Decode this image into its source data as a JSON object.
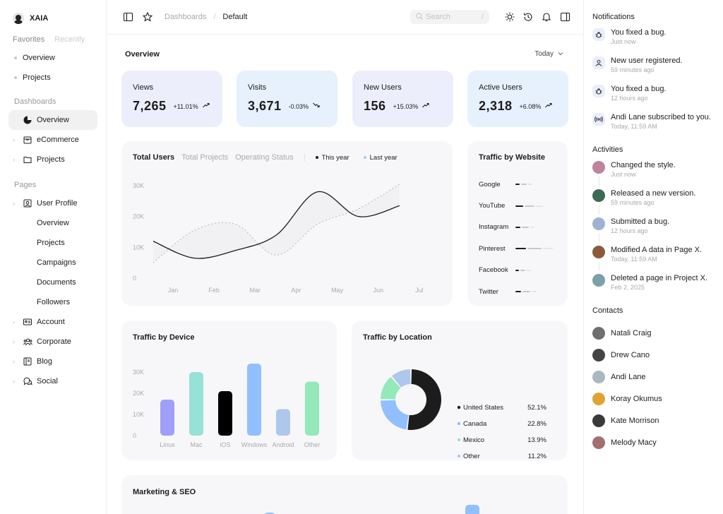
{
  "brand": {
    "name": "XAIA"
  },
  "sidebar": {
    "favorites_tab": "Favorites",
    "recently_tab": "Recently",
    "favorites": [
      {
        "label": "Overview"
      },
      {
        "label": "Projects"
      }
    ],
    "dashboards_label": "Dashboards",
    "dashboards": [
      {
        "label": "Overview",
        "icon": "pie-chart-icon"
      },
      {
        "label": "eCommerce",
        "icon": "shopping-bag-icon"
      },
      {
        "label": "Projects",
        "icon": "folder-icon"
      }
    ],
    "pages_label": "Pages",
    "user_profile": {
      "label": "User Profile",
      "icon": "user-badge-icon"
    },
    "user_profile_sub": [
      {
        "label": "Overview"
      },
      {
        "label": "Projects"
      },
      {
        "label": "Campaigns"
      },
      {
        "label": "Documents"
      },
      {
        "label": "Followers"
      }
    ],
    "pages": [
      {
        "label": "Account",
        "icon": "id-card-icon"
      },
      {
        "label": "Corporate",
        "icon": "users-icon"
      },
      {
        "label": "Blog",
        "icon": "book-icon"
      },
      {
        "label": "Social",
        "icon": "chat-icon"
      }
    ]
  },
  "topbar": {
    "breadcrumb_parent": "Dashboards",
    "breadcrumb_sep": "/",
    "breadcrumb_current": "Default",
    "search_placeholder": "Search",
    "search_shortcut": "/"
  },
  "overview": {
    "title": "Overview",
    "range": "Today",
    "stats": [
      {
        "label": "Views",
        "value": "7,265",
        "delta": "+11.01%",
        "trend": "up",
        "color": "#edeefc"
      },
      {
        "label": "Visits",
        "value": "3,671",
        "delta": "-0.03%",
        "trend": "down",
        "color": "#e6f1fd"
      },
      {
        "label": "New Users",
        "value": "156",
        "delta": "+15.03%",
        "trend": "up",
        "color": "#edeefc"
      },
      {
        "label": "Active Users",
        "value": "2,318",
        "delta": "+6.08%",
        "trend": "up",
        "color": "#e6f1fd"
      }
    ]
  },
  "total_users": {
    "tabs": [
      "Total Users",
      "Total Projects",
      "Operating Status"
    ],
    "legend_this_year": "This year",
    "legend_last_year": "Last year"
  },
  "traffic_by_website": {
    "title": "Traffic by Website",
    "sites": [
      {
        "label": "Google",
        "level": 0.35
      },
      {
        "label": "YouTube",
        "level": 0.6
      },
      {
        "label": "Instagram",
        "level": 0.4
      },
      {
        "label": "Pinterest",
        "level": 0.85
      },
      {
        "label": "Facebook",
        "level": 0.3
      },
      {
        "label": "Twitter",
        "level": 0.45
      }
    ]
  },
  "traffic_by_device": {
    "title": "Traffic by Device"
  },
  "traffic_by_location": {
    "title": "Traffic by Location"
  },
  "marketing": {
    "title": "Marketing & SEO"
  },
  "chart_data": [
    {
      "type": "line",
      "x": [
        "Jan",
        "Feb",
        "Mar",
        "Apr",
        "May",
        "Jun",
        "Jul"
      ],
      "yticks": [
        "0",
        "10K",
        "20K",
        "30K"
      ],
      "ylim": [
        0,
        30000
      ],
      "series": [
        {
          "name": "This year",
          "values": [
            12000,
            6500,
            9000,
            14000,
            28000,
            20000,
            23500
          ],
          "color": "#1c1c1c",
          "style": "solid"
        },
        {
          "name": "Last year",
          "values": [
            5000,
            15500,
            17500,
            7500,
            17500,
            22500,
            30500
          ],
          "color": "#b5b5b5",
          "style": "dotted"
        }
      ]
    },
    {
      "type": "bar",
      "categories": [
        "Linux",
        "Mac",
        "iOS",
        "Windows",
        "Android",
        "Other"
      ],
      "values": [
        17000,
        30000,
        21000,
        34000,
        12500,
        25500
      ],
      "colors": [
        "#9f9ff8",
        "#96e2d6",
        "#000000",
        "#92bfff",
        "#aec7ed",
        "#94e9b8"
      ],
      "yticks": [
        "0",
        "10K",
        "20K",
        "30K"
      ],
      "ylim": [
        0,
        35000
      ]
    },
    {
      "type": "pie",
      "categories": [
        "United States",
        "Canada",
        "Mexico",
        "Other"
      ],
      "values": [
        52.1,
        22.8,
        13.9,
        11.2
      ],
      "labels": [
        "52.1%",
        "22.8%",
        "13.9%",
        "11.2%"
      ],
      "colors": [
        "#1c1c1c",
        "#92bfff",
        "#94e9b8",
        "#aec7ed"
      ]
    }
  ],
  "notifications": {
    "title": "Notifications",
    "items": [
      {
        "text": "You fixed a bug.",
        "time": "Just now",
        "icon": "bug-icon"
      },
      {
        "text": "New user registered.",
        "time": "59 minutes ago",
        "icon": "user-icon"
      },
      {
        "text": "You fixed a bug.",
        "time": "12 hours ago",
        "icon": "bug-icon"
      },
      {
        "text": "Andi Lane subscribed to you.",
        "time": "Today, 11:59 AM",
        "icon": "broadcast-icon"
      }
    ]
  },
  "activities": {
    "title": "Activities",
    "items": [
      {
        "text": "Changed the style.",
        "time": "Just now",
        "color": "#c0849a"
      },
      {
        "text": "Released a new version.",
        "time": "59 minutes ago",
        "color": "#3c6a53"
      },
      {
        "text": "Submitted a bug.",
        "time": "12 hours ago",
        "color": "#9bb4d2"
      },
      {
        "text": "Modified A data in Page X.",
        "time": "Today, 11:59 AM",
        "color": "#8a5a3a"
      },
      {
        "text": "Deleted a page in Project X.",
        "time": "Feb 2, 2025",
        "color": "#7aa0a8"
      }
    ]
  },
  "contacts": {
    "title": "Contacts",
    "items": [
      {
        "name": "Natali Craig",
        "color": "#6f6f6f"
      },
      {
        "name": "Drew Cano",
        "color": "#444444"
      },
      {
        "name": "Andi Lane",
        "color": "#a9b9c2"
      },
      {
        "name": "Koray Okumus",
        "color": "#e0a234"
      },
      {
        "name": "Kate Morrison",
        "color": "#3a3a3a"
      },
      {
        "name": "Melody Macy",
        "color": "#a46f6f"
      }
    ]
  }
}
